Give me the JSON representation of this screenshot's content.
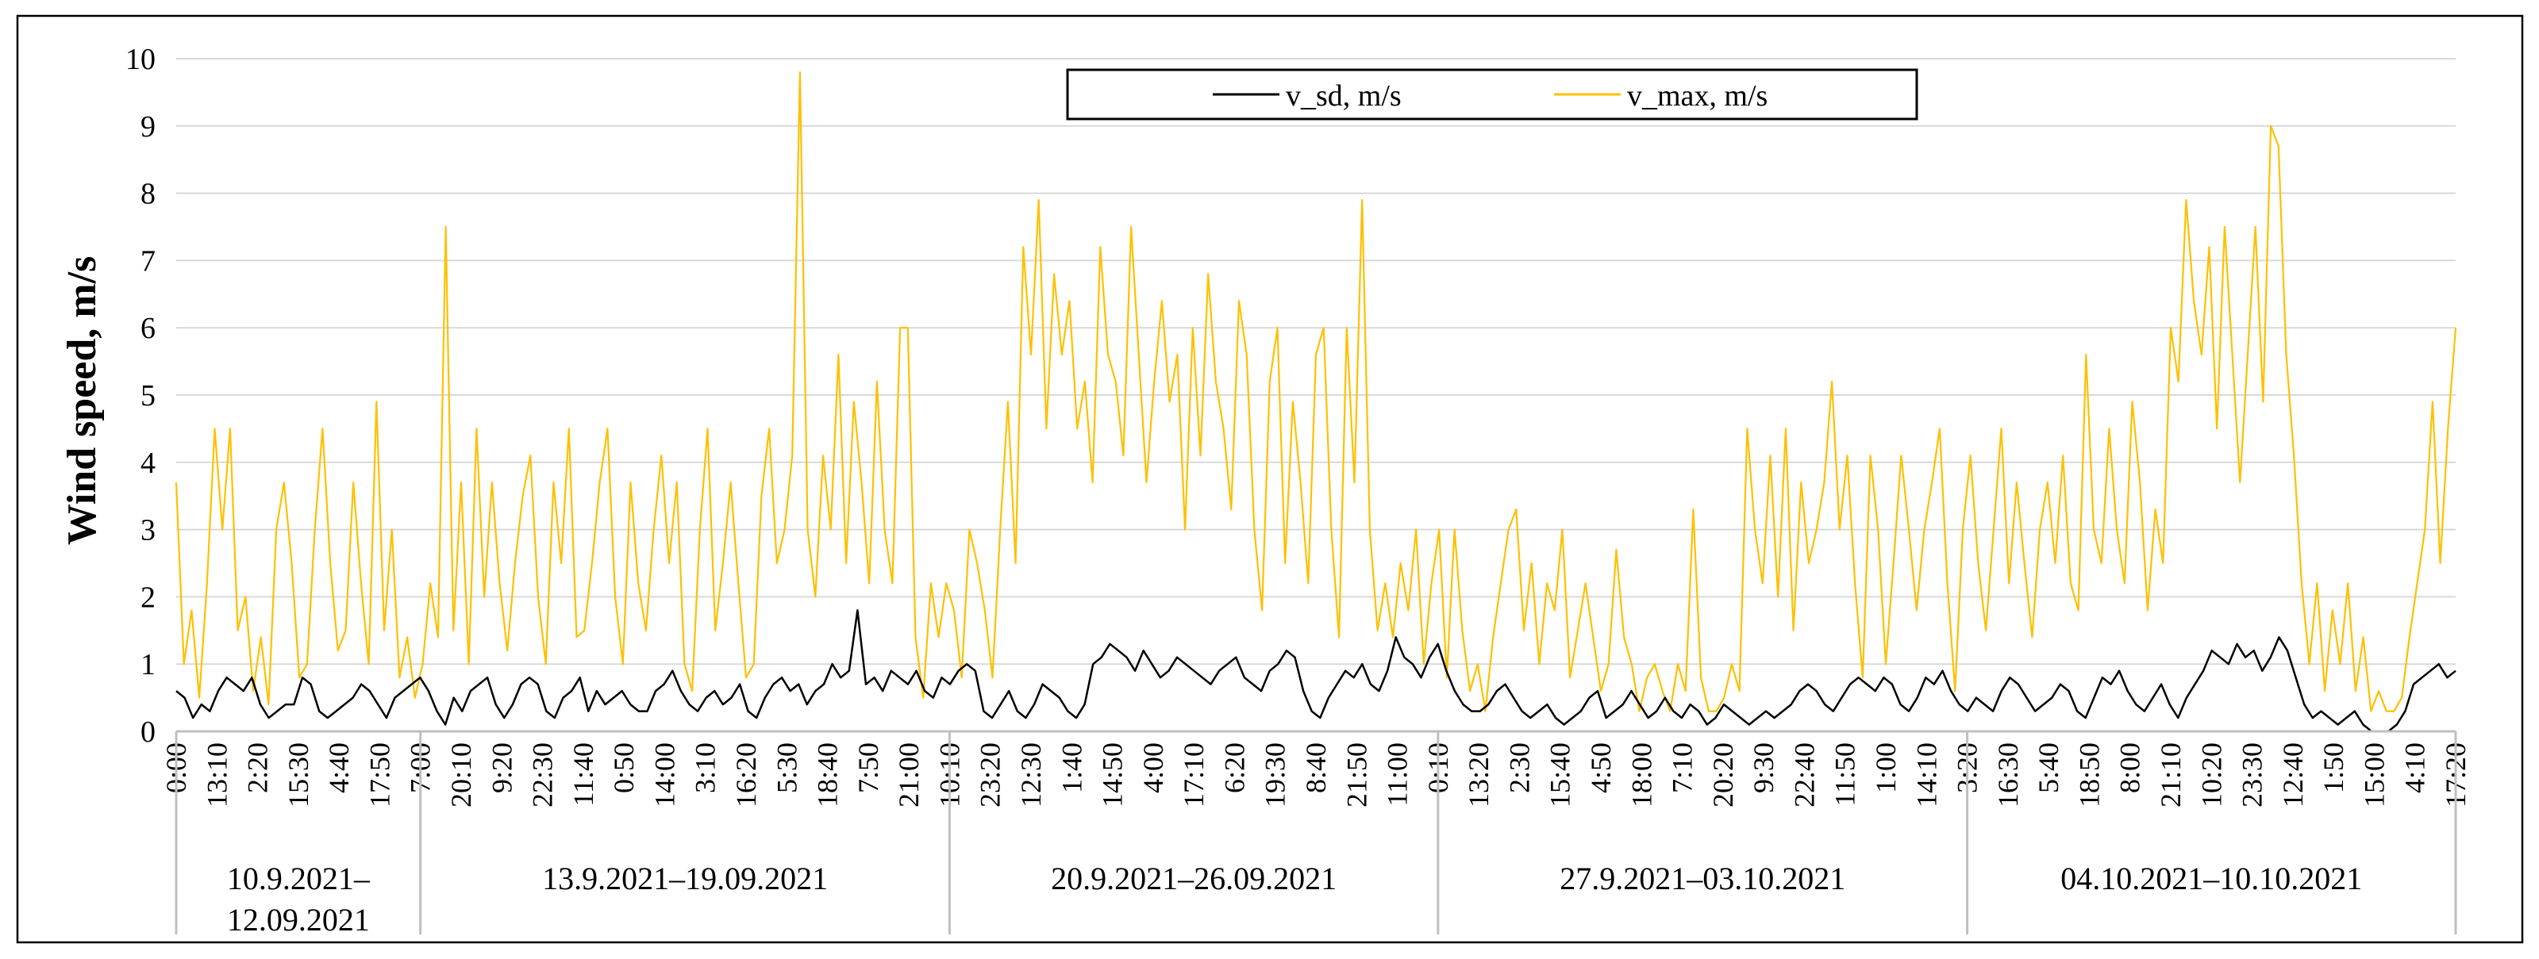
{
  "chart_data": {
    "type": "line",
    "ylabel": "Wind speed, m/s",
    "ylim": [
      0,
      10
    ],
    "yticks": [
      "0",
      "1",
      "2",
      "3",
      "4",
      "5",
      "6",
      "7",
      "8",
      "9",
      "10"
    ],
    "grid": true,
    "legend_position": "top-center",
    "time_ticks": [
      "0:00",
      "13:10",
      "2:20",
      "15:30",
      "4:40",
      "17:50",
      "7:00",
      "20:10",
      "9:20",
      "22:30",
      "11:40",
      "0:50",
      "14:00",
      "3:10",
      "16:20",
      "5:30",
      "18:40",
      "7:50",
      "21:00",
      "10:10",
      "23:20",
      "12:30",
      "1:40",
      "14:50",
      "4:00",
      "17:10",
      "6:20",
      "19:30",
      "8:40",
      "21:50",
      "11:00",
      "0:10",
      "13:20",
      "2:30",
      "15:40",
      "4:50",
      "18:00",
      "7:10",
      "20:20",
      "9:30",
      "22:40",
      "11:50",
      "1:00",
      "14:10",
      "3:20",
      "16:30",
      "5:40",
      "18:50",
      "8:00",
      "21:10",
      "10:20",
      "23:30",
      "12:40",
      "1:50",
      "15:00",
      "4:10",
      "17:20"
    ],
    "periods": [
      {
        "label": "10.9.2021–12.09.2021",
        "line1": "10.9.2021–",
        "line2": "12.09.2021",
        "start_tick": 0,
        "end_tick": 6
      },
      {
        "label": "13.9.2021–19.09.2021",
        "start_tick": 6,
        "end_tick": 19
      },
      {
        "label": "20.9.2021–26.09.2021",
        "start_tick": 19,
        "end_tick": 31
      },
      {
        "label": "27.9.2021–03.10.2021",
        "start_tick": 31,
        "end_tick": 44
      },
      {
        "label": "04.10.2021–10.10.2021",
        "start_tick": 44,
        "end_tick": 57
      }
    ],
    "series": [
      {
        "name": "v_sd, m/s",
        "color": "#000000",
        "values": [
          0.6,
          0.5,
          0.2,
          0.4,
          0.3,
          0.6,
          0.8,
          0.7,
          0.6,
          0.8,
          0.4,
          0.2,
          0.3,
          0.4,
          0.4,
          0.8,
          0.7,
          0.3,
          0.2,
          0.3,
          0.4,
          0.5,
          0.7,
          0.6,
          0.4,
          0.2,
          0.5,
          0.6,
          0.7,
          0.8,
          0.6,
          0.3,
          0.1,
          0.5,
          0.3,
          0.6,
          0.7,
          0.8,
          0.4,
          0.2,
          0.4,
          0.7,
          0.8,
          0.7,
          0.3,
          0.2,
          0.5,
          0.6,
          0.8,
          0.3,
          0.6,
          0.4,
          0.5,
          0.6,
          0.4,
          0.3,
          0.3,
          0.6,
          0.7,
          0.9,
          0.6,
          0.4,
          0.3,
          0.5,
          0.6,
          0.4,
          0.5,
          0.7,
          0.3,
          0.2,
          0.5,
          0.7,
          0.8,
          0.6,
          0.7,
          0.4,
          0.6,
          0.7,
          1.0,
          0.8,
          0.9,
          1.8,
          0.7,
          0.8,
          0.6,
          0.9,
          0.8,
          0.7,
          0.9,
          0.6,
          0.5,
          0.8,
          0.7,
          0.9,
          1.0,
          0.9,
          0.3,
          0.2,
          0.4,
          0.6,
          0.3,
          0.2,
          0.4,
          0.7,
          0.6,
          0.5,
          0.3,
          0.2,
          0.4,
          1.0,
          1.1,
          1.3,
          1.2,
          1.1,
          0.9,
          1.2,
          1.0,
          0.8,
          0.9,
          1.1,
          1.0,
          0.9,
          0.8,
          0.7,
          0.9,
          1.0,
          1.1,
          0.8,
          0.7,
          0.6,
          0.9,
          1.0,
          1.2,
          1.1,
          0.6,
          0.3,
          0.2,
          0.5,
          0.7,
          0.9,
          0.8,
          1.0,
          0.7,
          0.6,
          0.9,
          1.4,
          1.1,
          1.0,
          0.8,
          1.1,
          1.3,
          0.9,
          0.6,
          0.4,
          0.3,
          0.3,
          0.4,
          0.6,
          0.7,
          0.5,
          0.3,
          0.2,
          0.3,
          0.4,
          0.2,
          0.1,
          0.2,
          0.3,
          0.5,
          0.6,
          0.2,
          0.3,
          0.4,
          0.6,
          0.4,
          0.2,
          0.3,
          0.5,
          0.3,
          0.2,
          0.4,
          0.3,
          0.1,
          0.2,
          0.4,
          0.3,
          0.2,
          0.1,
          0.2,
          0.3,
          0.2,
          0.3,
          0.4,
          0.6,
          0.7,
          0.6,
          0.4,
          0.3,
          0.5,
          0.7,
          0.8,
          0.7,
          0.6,
          0.8,
          0.7,
          0.4,
          0.3,
          0.5,
          0.8,
          0.7,
          0.9,
          0.6,
          0.4,
          0.3,
          0.5,
          0.4,
          0.3,
          0.6,
          0.8,
          0.7,
          0.5,
          0.3,
          0.4,
          0.5,
          0.7,
          0.6,
          0.3,
          0.2,
          0.5,
          0.8,
          0.7,
          0.9,
          0.6,
          0.4,
          0.3,
          0.5,
          0.7,
          0.4,
          0.2,
          0.5,
          0.7,
          0.9,
          1.2,
          1.1,
          1.0,
          1.3,
          1.1,
          1.2,
          0.9,
          1.1,
          1.4,
          1.2,
          0.8,
          0.4,
          0.2,
          0.3,
          0.2,
          0.1,
          0.2,
          0.3,
          0.1,
          0.0,
          0.0,
          0.0,
          0.1,
          0.3,
          0.7,
          0.8,
          0.9,
          1.0,
          0.8,
          0.9
        ]
      },
      {
        "name": "v_max, m/s",
        "color": "#FFC000",
        "values": [
          3.7,
          1.0,
          1.8,
          0.5,
          2.2,
          4.5,
          3.0,
          4.5,
          1.5,
          2.0,
          0.6,
          1.4,
          0.4,
          3.0,
          3.7,
          2.5,
          0.8,
          1.0,
          3.0,
          4.5,
          2.5,
          1.2,
          1.5,
          3.7,
          2.2,
          1.0,
          4.9,
          1.5,
          3.0,
          0.8,
          1.4,
          0.5,
          1.0,
          2.2,
          1.4,
          7.5,
          1.5,
          3.7,
          1.0,
          4.5,
          2.0,
          3.7,
          2.2,
          1.2,
          2.5,
          3.5,
          4.1,
          2.0,
          1.0,
          3.7,
          2.5,
          4.5,
          1.4,
          1.5,
          2.5,
          3.7,
          4.5,
          2.0,
          1.0,
          3.7,
          2.2,
          1.5,
          3.0,
          4.1,
          2.5,
          3.7,
          1.0,
          0.6,
          3.0,
          4.5,
          1.5,
          2.5,
          3.7,
          2.2,
          0.8,
          1.0,
          3.5,
          4.5,
          2.5,
          3.0,
          4.1,
          9.8,
          3.0,
          2.0,
          4.1,
          3.0,
          5.6,
          2.5,
          4.9,
          3.7,
          2.2,
          5.2,
          3.0,
          2.2,
          6.0,
          6.0,
          1.4,
          0.5,
          2.2,
          1.4,
          2.2,
          1.8,
          0.8,
          3.0,
          2.5,
          1.8,
          0.8,
          3.0,
          4.9,
          2.5,
          7.2,
          5.6,
          7.9,
          4.5,
          6.8,
          5.6,
          6.4,
          4.5,
          5.2,
          3.7,
          7.2,
          5.6,
          5.2,
          4.1,
          7.5,
          5.6,
          3.7,
          5.2,
          6.4,
          4.9,
          5.6,
          3.0,
          6.0,
          4.1,
          6.8,
          5.2,
          4.5,
          3.3,
          6.4,
          5.6,
          3.0,
          1.8,
          5.2,
          6.0,
          2.5,
          4.9,
          3.7,
          2.2,
          5.6,
          6.0,
          3.0,
          1.4,
          6.0,
          3.7,
          7.9,
          3.0,
          1.5,
          2.2,
          1.4,
          2.5,
          1.8,
          3.0,
          1.0,
          2.2,
          3.0,
          0.8,
          3.0,
          1.5,
          0.6,
          1.0,
          0.3,
          1.4,
          2.2,
          3.0,
          3.3,
          1.5,
          2.5,
          1.0,
          2.2,
          1.8,
          3.0,
          0.8,
          1.5,
          2.2,
          1.4,
          0.6,
          1.0,
          2.7,
          1.4,
          1.0,
          0.3,
          0.8,
          1.0,
          0.6,
          0.3,
          1.0,
          0.6,
          3.3,
          0.8,
          0.3,
          0.3,
          0.5,
          1.0,
          0.6,
          4.5,
          3.0,
          2.2,
          4.1,
          2.0,
          4.5,
          1.5,
          3.7,
          2.5,
          3.0,
          3.7,
          5.2,
          3.0,
          4.1,
          2.2,
          0.8,
          4.1,
          3.0,
          1.0,
          2.5,
          4.1,
          3.0,
          1.8,
          3.0,
          3.7,
          4.5,
          2.2,
          0.6,
          3.0,
          4.1,
          2.5,
          1.5,
          3.0,
          4.5,
          2.2,
          3.7,
          2.5,
          1.4,
          3.0,
          3.7,
          2.5,
          4.1,
          2.2,
          1.8,
          5.6,
          3.0,
          2.5,
          4.5,
          3.0,
          2.2,
          4.9,
          3.7,
          1.8,
          3.3,
          2.5,
          6.0,
          5.2,
          7.9,
          6.4,
          5.6,
          7.2,
          4.5,
          7.5,
          5.6,
          3.7,
          5.6,
          7.5,
          4.9,
          9.0,
          8.7,
          5.6,
          4.1,
          2.2,
          1.0,
          2.2,
          0.6,
          1.8,
          1.0,
          2.2,
          0.6,
          1.4,
          0.3,
          0.6,
          0.3,
          0.3,
          0.5,
          1.4,
          2.2,
          3.0,
          4.9,
          2.5,
          4.5,
          6.0
        ]
      }
    ]
  }
}
